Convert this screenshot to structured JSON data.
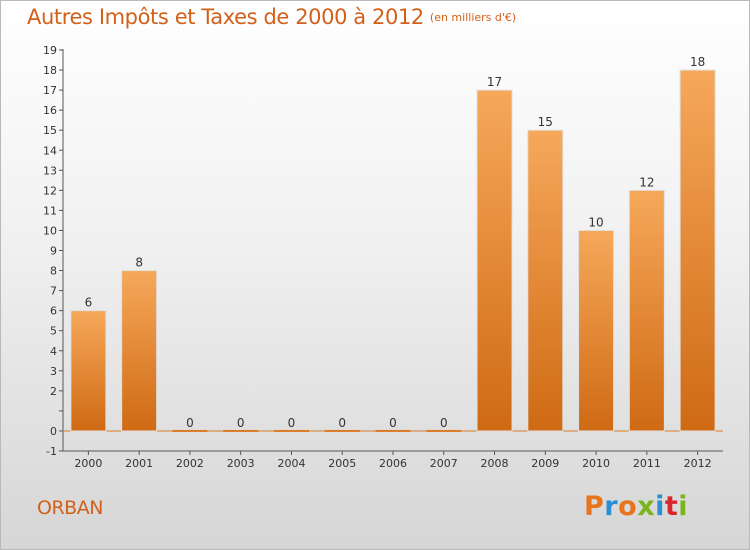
{
  "header": {
    "title": "Autres Impôts et Taxes de 2000 à 2012",
    "unit": "(en milliers d'€)"
  },
  "footer": {
    "commune": "ORBAN",
    "logo_text": "Proxiti",
    "logo_colors": [
      "#e8741e",
      "#2a8fd0",
      "#e8741e",
      "#7ab51d",
      "#2a8fd0",
      "#d8262f",
      "#7ab51d"
    ]
  },
  "chart_data": {
    "type": "bar",
    "categories": [
      "2000",
      "2001",
      "2002",
      "2003",
      "2004",
      "2005",
      "2006",
      "2007",
      "2008",
      "2009",
      "2010",
      "2011",
      "2012"
    ],
    "values": [
      6,
      8,
      0,
      0,
      0,
      0,
      0,
      0,
      17,
      15,
      10,
      12,
      18
    ],
    "data_labels": [
      "6",
      "8",
      "0",
      "0",
      "0",
      "0",
      "0",
      "0",
      "17",
      "15",
      "10",
      "12",
      "18"
    ],
    "y_ticks": [
      "-1",
      "0",
      "",
      "2",
      "3",
      "4",
      "5",
      "6",
      "7",
      "8",
      "9",
      "10",
      "11",
      "12",
      "13",
      "14",
      "15",
      "16",
      "17",
      "18",
      "19"
    ],
    "ylim": [
      -1,
      19
    ],
    "grid": false,
    "colors": {
      "bar_top": "#f6a85a",
      "bar_bottom": "#cf6a14",
      "zero_line": "#d97b2a"
    }
  }
}
